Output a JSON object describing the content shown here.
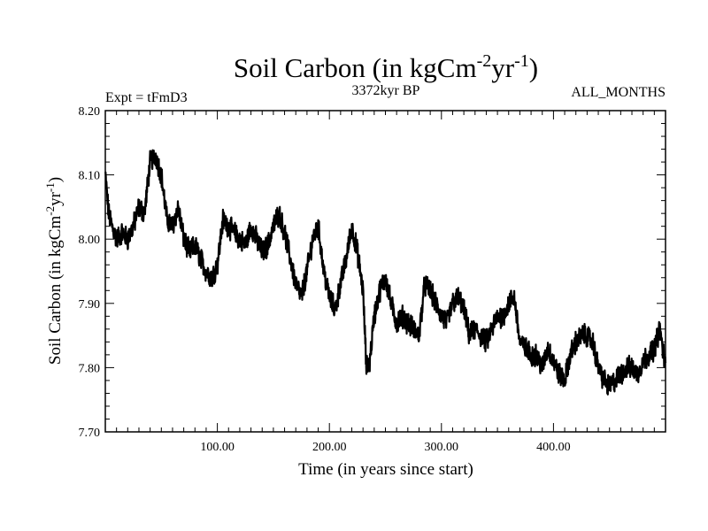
{
  "chart_data": {
    "type": "line",
    "title": "Soil Carbon (in kgCm",
    "title_sup1": "-2",
    "title_mid": "yr",
    "title_sup2": "-1",
    "title_end": ")",
    "subtitle_left": "Expt = tFmD3",
    "subtitle_center": "3372kyr BP",
    "subtitle_right": "ALL_MONTHS",
    "xlabel": "Time (in years since start)",
    "ylabel": "Soil Carbon (in kgCm",
    "ylabel_sup1": "-2",
    "ylabel_mid": "yr",
    "ylabel_sup2": "-1",
    "ylabel_end": ")",
    "xlim": [
      0,
      500
    ],
    "ylim": [
      7.7,
      8.2
    ],
    "x_ticks": [
      100,
      200,
      300,
      400
    ],
    "x_tick_labels": [
      "100.00",
      "200.00",
      "300.00",
      "400.00"
    ],
    "y_ticks": [
      7.7,
      7.8,
      7.9,
      8.0,
      8.1,
      8.2
    ],
    "y_tick_labels": [
      "7.70",
      "7.80",
      "7.90",
      "8.00",
      "8.10",
      "8.20"
    ],
    "grid": false,
    "series": [
      {
        "name": "Soil Carbon",
        "color": "#000000",
        "x": [
          0,
          3,
          6,
          10,
          15,
          20,
          25,
          30,
          35,
          40,
          45,
          50,
          55,
          60,
          65,
          70,
          75,
          80,
          85,
          90,
          95,
          100,
          105,
          110,
          115,
          120,
          125,
          130,
          135,
          140,
          145,
          150,
          155,
          160,
          165,
          170,
          175,
          180,
          185,
          190,
          195,
          200,
          205,
          210,
          215,
          220,
          225,
          230,
          233,
          236,
          240,
          245,
          250,
          255,
          260,
          265,
          270,
          275,
          280,
          285,
          290,
          295,
          300,
          305,
          310,
          315,
          320,
          325,
          330,
          335,
          340,
          345,
          350,
          355,
          360,
          365,
          370,
          375,
          380,
          385,
          390,
          395,
          400,
          405,
          410,
          415,
          420,
          425,
          430,
          435,
          440,
          445,
          450,
          455,
          460,
          465,
          470,
          475,
          480,
          485,
          490,
          495,
          500
        ],
        "values": [
          8.1,
          8.04,
          8.02,
          8.0,
          8.01,
          8.0,
          8.02,
          8.05,
          8.04,
          8.12,
          8.13,
          8.1,
          8.03,
          8.02,
          8.05,
          8.0,
          7.98,
          7.99,
          7.97,
          7.95,
          7.94,
          7.96,
          8.03,
          8.02,
          8.01,
          8.0,
          7.99,
          8.02,
          8.0,
          7.98,
          7.99,
          8.02,
          8.04,
          8.01,
          7.97,
          7.93,
          7.91,
          7.95,
          8.0,
          8.02,
          7.95,
          7.91,
          7.89,
          7.93,
          7.97,
          8.02,
          7.98,
          7.92,
          7.8,
          7.81,
          7.88,
          7.92,
          7.94,
          7.9,
          7.87,
          7.88,
          7.87,
          7.86,
          7.85,
          7.93,
          7.92,
          7.9,
          7.88,
          7.87,
          7.9,
          7.91,
          7.89,
          7.85,
          7.86,
          7.85,
          7.84,
          7.86,
          7.88,
          7.88,
          7.9,
          7.91,
          7.84,
          7.83,
          7.82,
          7.82,
          7.8,
          7.83,
          7.81,
          7.79,
          7.78,
          7.82,
          7.84,
          7.85,
          7.85,
          7.84,
          7.8,
          7.78,
          7.77,
          7.78,
          7.79,
          7.8,
          7.8,
          7.79,
          7.81,
          7.82,
          7.83,
          7.86,
          7.8
        ]
      }
    ]
  }
}
